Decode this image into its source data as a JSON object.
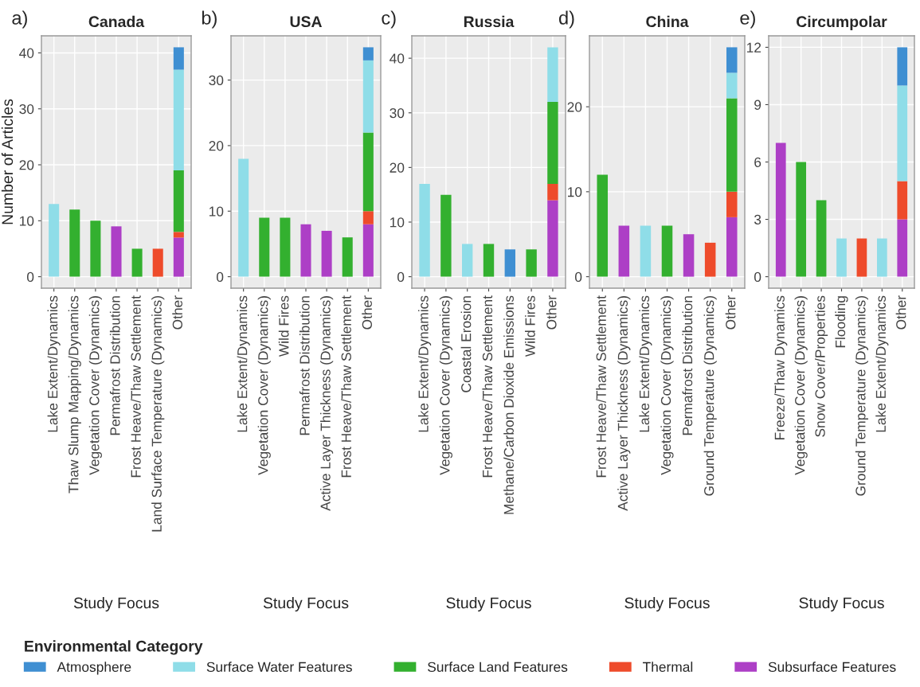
{
  "chart_data": [
    {
      "type": "bar",
      "stacked": true,
      "title": "Canada",
      "annotations": [
        "a)"
      ],
      "xlabel": "Study Focus",
      "ylabel": "Number of Articles",
      "legend": "bottom",
      "legend_title": "Environmental Category",
      "grid": true,
      "ylim": [
        -2.05,
        43.05
      ],
      "yticks": [
        0,
        10,
        20,
        30,
        40
      ],
      "categories": [
        "Lake Extent/Dynamics",
        "Thaw Slump Mapping/Dynamics",
        "Vegetation Cover (Dynamics)",
        "Permafrost Distribution",
        "Frost Heave/Thaw Settlement",
        "Land Surface Temperature (Dynamics)",
        "Other"
      ],
      "series": [
        {
          "name": "Subsurface Features",
          "color": "#ad3fc6",
          "values": [
            null,
            null,
            null,
            9,
            null,
            null,
            7
          ]
        },
        {
          "name": "Thermal",
          "color": "#ee4b2b",
          "values": [
            null,
            null,
            null,
            null,
            null,
            5,
            1
          ]
        },
        {
          "name": "Surface Land Features",
          "color": "#33b02f",
          "values": [
            null,
            12,
            10,
            null,
            5,
            null,
            11
          ]
        },
        {
          "name": "Surface Water Features",
          "color": "#8fdde8",
          "values": [
            13,
            null,
            null,
            null,
            null,
            null,
            18
          ]
        },
        {
          "name": "Atmosphere",
          "color": "#3f8fd2",
          "values": [
            null,
            null,
            null,
            null,
            null,
            null,
            4
          ]
        }
      ]
    },
    {
      "type": "bar",
      "stacked": true,
      "title": "USA",
      "annotations": [
        "b)"
      ],
      "xlabel": "Study Focus",
      "grid": true,
      "ylim": [
        -1.75,
        36.75
      ],
      "yticks": [
        0,
        10,
        20,
        30
      ],
      "categories": [
        "Lake Extent/Dynamics",
        "Vegetation Cover (Dynamics)",
        "Wild Fires",
        "Permafrost Distribution",
        "Active Layer Thickness (Dynamics)",
        "Frost Heave/Thaw Settlement",
        "Other"
      ],
      "series": [
        {
          "color": "#ad3fc6",
          "values": [
            null,
            null,
            null,
            8,
            7,
            null,
            8
          ]
        },
        {
          "color": "#ee4b2b",
          "values": [
            null,
            null,
            null,
            null,
            null,
            null,
            2
          ]
        },
        {
          "color": "#33b02f",
          "values": [
            null,
            9,
            9,
            null,
            null,
            6,
            12
          ]
        },
        {
          "color": "#8fdde8",
          "values": [
            18,
            null,
            null,
            null,
            null,
            null,
            11
          ]
        },
        {
          "color": "#3f8fd2",
          "values": [
            null,
            null,
            null,
            null,
            null,
            null,
            2
          ]
        }
      ]
    },
    {
      "type": "bar",
      "stacked": true,
      "title": "Russia",
      "annotations": [
        "c)"
      ],
      "xlabel": "Study Focus",
      "grid": true,
      "ylim": [
        -2.1,
        44.1
      ],
      "yticks": [
        0,
        10,
        20,
        30,
        40
      ],
      "categories": [
        "Lake Extent/Dynamics",
        "Vegetation Cover (Dynamics)",
        "Coastal Erosion",
        "Frost Heave/Thaw Settlement",
        "Methane/Carbon Dioxide Emissions",
        "Wild Fires",
        "Other"
      ],
      "series": [
        {
          "color": "#ad3fc6",
          "values": [
            null,
            null,
            null,
            null,
            null,
            null,
            14
          ]
        },
        {
          "color": "#ee4b2b",
          "values": [
            null,
            null,
            null,
            null,
            null,
            null,
            3
          ]
        },
        {
          "color": "#33b02f",
          "values": [
            null,
            15,
            null,
            6,
            null,
            5,
            15
          ]
        },
        {
          "color": "#8fdde8",
          "values": [
            17,
            null,
            6,
            null,
            null,
            null,
            10
          ]
        },
        {
          "color": "#3f8fd2",
          "values": [
            null,
            null,
            null,
            null,
            5,
            null,
            null
          ]
        }
      ]
    },
    {
      "type": "bar",
      "stacked": true,
      "title": "China",
      "annotations": [
        "d)"
      ],
      "xlabel": "Study Focus",
      "grid": true,
      "ylim": [
        -1.35,
        28.35
      ],
      "yticks": [
        0,
        10,
        20
      ],
      "categories": [
        "Frost Heave/Thaw Settlement",
        "Active Layer Thickness (Dynamics)",
        "Lake Extent/Dynamics",
        "Vegetation Cover (Dynamics)",
        "Permafrost Distribution",
        "Ground Temperature (Dynamics)",
        "Other"
      ],
      "series": [
        {
          "color": "#ad3fc6",
          "values": [
            null,
            6,
            null,
            null,
            5,
            null,
            7
          ]
        },
        {
          "color": "#ee4b2b",
          "values": [
            null,
            null,
            null,
            null,
            null,
            4,
            3
          ]
        },
        {
          "color": "#33b02f",
          "values": [
            12,
            null,
            null,
            6,
            null,
            null,
            11
          ]
        },
        {
          "color": "#8fdde8",
          "values": [
            null,
            null,
            6,
            null,
            null,
            null,
            3
          ]
        },
        {
          "color": "#3f8fd2",
          "values": [
            null,
            null,
            null,
            null,
            null,
            null,
            3
          ]
        }
      ]
    },
    {
      "type": "bar",
      "stacked": true,
      "title": "Circumpolar",
      "annotations": [
        "e)"
      ],
      "xlabel": "Study Focus",
      "grid": true,
      "ylim": [
        -0.6,
        12.6
      ],
      "yticks": [
        0,
        3,
        6,
        9,
        12
      ],
      "categories": [
        "Freeze/Thaw Dynamics",
        "Vegetation Cover (Dynamics)",
        "Snow Cover/Properties",
        "Flooding",
        "Ground Temperature (Dynamics)",
        "Lake Extent/Dynamics",
        "Other"
      ],
      "series": [
        {
          "color": "#ad3fc6",
          "values": [
            7,
            null,
            null,
            null,
            null,
            null,
            3
          ]
        },
        {
          "color": "#ee4b2b",
          "values": [
            null,
            null,
            null,
            null,
            2,
            null,
            2
          ]
        },
        {
          "color": "#33b02f",
          "values": [
            null,
            6,
            4,
            null,
            null,
            null,
            null
          ]
        },
        {
          "color": "#8fdde8",
          "values": [
            null,
            null,
            null,
            2,
            null,
            2,
            5
          ]
        },
        {
          "color": "#3f8fd2",
          "values": [
            null,
            null,
            null,
            null,
            null,
            null,
            2
          ]
        }
      ]
    }
  ]
}
